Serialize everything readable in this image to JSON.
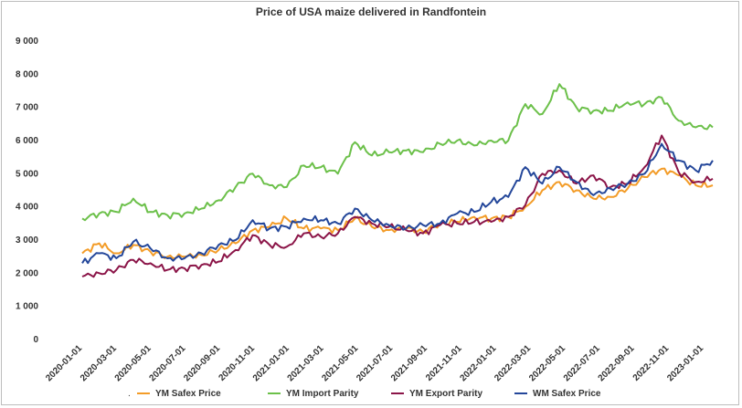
{
  "chart_data": {
    "type": "line",
    "title": "Price of USA maize delivered in Randfontein",
    "ylim": [
      0,
      9000
    ],
    "y_ticks": [
      "0",
      "1 000",
      "2 000",
      "3 000",
      "4 000",
      "5 000",
      "6 000",
      "7 000",
      "8 000",
      "9 000"
    ],
    "x_ticks": [
      "2020-01-01",
      "2020-03-01",
      "2020-05-01",
      "2020-07-01",
      "2020-09-01",
      "2020-11-01",
      "2021-01-01",
      "2021-03-01",
      "2021-05-01",
      "2021-07-01",
      "2021-09-01",
      "2021-11-01",
      "2022-01-01",
      "2022-03-01",
      "2022-05-01",
      "2022-07-01",
      "2022-09-01",
      "2022-11-01",
      "2023-01-01"
    ],
    "x": [
      "2020-01",
      "2020-02",
      "2020-03",
      "2020-04",
      "2020-05",
      "2020-06",
      "2020-07",
      "2020-08",
      "2020-09",
      "2020-10",
      "2020-11",
      "2020-12",
      "2021-01",
      "2021-02",
      "2021-03",
      "2021-04",
      "2021-05",
      "2021-06",
      "2021-07",
      "2021-08",
      "2021-09",
      "2021-10",
      "2021-11",
      "2021-12",
      "2022-01",
      "2022-02",
      "2022-03",
      "2022-04",
      "2022-05",
      "2022-06",
      "2022-07",
      "2022-08",
      "2022-09",
      "2022-10",
      "2022-11",
      "2022-12",
      "2023-01",
      "2023-02"
    ],
    "series": [
      {
        "name": "YM Safex Price",
        "color": "#f39c28",
        "values": [
          2600,
          2900,
          2600,
          2850,
          2650,
          2500,
          2500,
          2550,
          2700,
          2900,
          3300,
          3400,
          3650,
          3350,
          3350,
          3300,
          3650,
          3400,
          3300,
          3350,
          3250,
          3500,
          3550,
          3700,
          3650,
          3700,
          4000,
          4500,
          4750,
          4500,
          4250,
          4300,
          4550,
          4900,
          5150,
          4950,
          4650,
          4650
        ]
      },
      {
        "name": "YM Import Parity",
        "color": "#6cc04a",
        "values": [
          3650,
          3800,
          3850,
          4250,
          3850,
          3750,
          3800,
          3950,
          4200,
          4600,
          5000,
          4650,
          4600,
          5250,
          5200,
          5000,
          5950,
          5550,
          5650,
          5700,
          5650,
          5900,
          6000,
          5850,
          6000,
          6000,
          7100,
          6800,
          7700,
          7000,
          6900,
          6900,
          7150,
          7100,
          7300,
          6600,
          6400,
          6400
        ]
      },
      {
        "name": "YM Export Parity",
        "color": "#8b1548",
        "values": [
          1900,
          2000,
          2100,
          2400,
          2300,
          2100,
          2150,
          2250,
          2350,
          2700,
          3150,
          2850,
          2800,
          3200,
          3100,
          3200,
          3700,
          3500,
          3400,
          3300,
          3200,
          3450,
          3500,
          3550,
          3550,
          3700,
          4050,
          5000,
          5100,
          4700,
          4950,
          4600,
          4700,
          5200,
          6150,
          5050,
          4750,
          4850
        ]
      },
      {
        "name": "WM Safex Price",
        "color": "#24479a",
        "values": [
          2300,
          2600,
          2450,
          2950,
          2750,
          2450,
          2450,
          2600,
          2850,
          3000,
          3600,
          3350,
          3400,
          3650,
          3600,
          3500,
          3950,
          3600,
          3450,
          3350,
          3450,
          3500,
          3800,
          3850,
          4150,
          4300,
          5200,
          4700,
          5200,
          4750,
          4350,
          4550,
          4700,
          5000,
          5900,
          5400,
          5100,
          5400
        ]
      }
    ],
    "legend_position": "bottom",
    "legend_marker": ".",
    "grid": false
  }
}
